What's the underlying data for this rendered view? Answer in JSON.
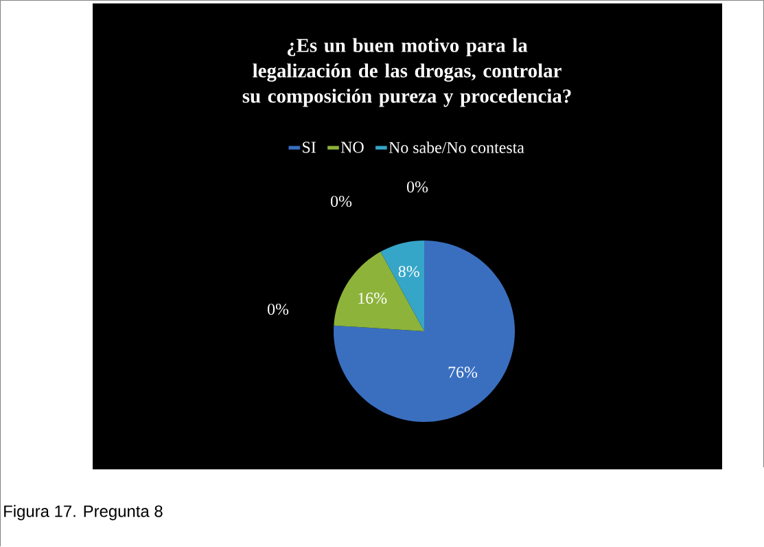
{
  "chart_data": {
    "type": "pie",
    "title": "¿Es un buen motivo para la legalización de las drogas, controlar su composición pureza y procedencia?",
    "categories": [
      "SI",
      "NO",
      "No sabe/No contesta"
    ],
    "values": [
      76,
      16,
      8
    ],
    "colors": [
      "#3a6fc0",
      "#8db33a",
      "#36a6c8"
    ],
    "value_labels": [
      "76%",
      "16%",
      "8%"
    ],
    "legend": "top",
    "annotations": [
      "0%",
      "0%",
      "0%",
      "Figura 17. Pregunta 8"
    ]
  }
}
